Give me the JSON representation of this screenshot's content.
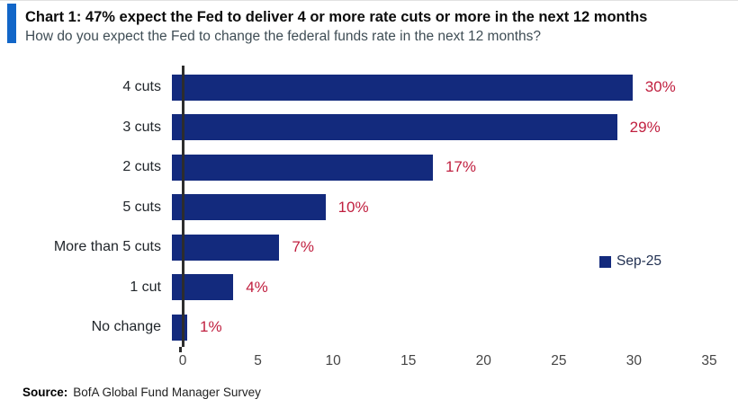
{
  "header": {
    "title": "Chart 1: 47% expect the Fed to deliver 4 or more rate cuts or more in the next 12 months",
    "subtitle": "How do you expect the Fed to change the federal funds rate in the next 12 months?"
  },
  "chart_data": {
    "type": "bar",
    "orientation": "horizontal",
    "categories": [
      "4 cuts",
      "3 cuts",
      "2 cuts",
      "5 cuts",
      "More than 5 cuts",
      "1 cut",
      "No change"
    ],
    "values": [
      30,
      29,
      17,
      10,
      7,
      4,
      1
    ],
    "value_labels": [
      "30%",
      "29%",
      "17%",
      "10%",
      "7%",
      "4%",
      "1%"
    ],
    "series": [
      {
        "name": "Sep-25",
        "values": [
          30,
          29,
          17,
          10,
          7,
          4,
          1
        ]
      }
    ],
    "xlim": [
      0,
      35
    ],
    "x_ticks": [
      0,
      5,
      10,
      15,
      20,
      25,
      30,
      35
    ],
    "grid": false,
    "legend": {
      "label": "Sep-25",
      "position": "right-middle"
    }
  },
  "footer": {
    "source_label": "Source:",
    "source_text": "BofA Global Fund Manager Survey"
  },
  "colors": {
    "accent_bar": "#1266c8",
    "bar": "#132a7d",
    "value_label": "#c01f3f",
    "axis_line": "#2d2d2d"
  }
}
